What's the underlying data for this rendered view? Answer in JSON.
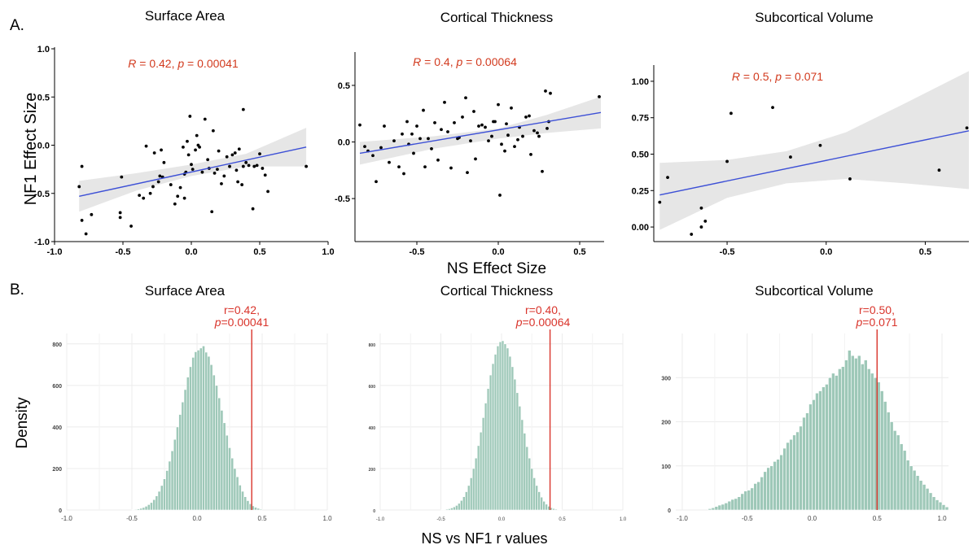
{
  "figure": {
    "panel_a_label": "A.",
    "panel_b_label": "B.",
    "a_ylabel": "NF1 Effect Size",
    "a_xlabel": "NS Effect Size",
    "b_ylabel": "Density",
    "b_xlabel": "NS vs NF1 r values"
  },
  "colors": {
    "point": "#000000",
    "fit_line": "#3d50d6",
    "ribbon": "#e6e6e6",
    "stats_text": "#d23a1e",
    "bar_fill": "#9ec8b8",
    "bar_edge": "#ffffff",
    "ref_line": "#d9342b",
    "grid": "#ececec"
  },
  "chart_data": [
    {
      "type": "scatter",
      "title": "Surface Area",
      "stats": {
        "r_label": "R",
        "r": "0.42",
        "p_label": "p",
        "p": "0.00041"
      },
      "xlim": [
        -1.0,
        1.0
      ],
      "ylim": [
        -1.0,
        1.0
      ],
      "xticks": [
        -1.0,
        -0.5,
        0.0,
        0.5,
        1.0
      ],
      "xtick_labels": [
        "-1.0",
        "-0.5",
        "0.0",
        "0.5",
        "1.0"
      ],
      "yticks": [
        -1.0,
        -0.5,
        0.0,
        0.5,
        1.0
      ],
      "ytick_labels": [
        "-1.0",
        "-0.5",
        "0.0",
        "0.5",
        "1.0"
      ],
      "fit": {
        "x": [
          -0.82,
          0.84
        ],
        "y": [
          -0.53,
          -0.02
        ]
      },
      "ribbon": {
        "x": [
          -0.82,
          -0.4,
          0.0,
          0.4,
          0.84
        ],
        "lower": [
          -0.69,
          -0.47,
          -0.32,
          -0.22,
          -0.22
        ],
        "upper": [
          -0.37,
          -0.29,
          -0.2,
          -0.09,
          0.18
        ]
      },
      "points": [
        [
          -0.82,
          -0.43
        ],
        [
          -0.8,
          -0.78
        ],
        [
          -0.8,
          -0.22
        ],
        [
          -0.77,
          -0.92
        ],
        [
          -0.73,
          -0.72
        ],
        [
          -0.52,
          -0.75
        ],
        [
          -0.52,
          -0.7
        ],
        [
          -0.51,
          -0.33
        ],
        [
          -0.44,
          -0.84
        ],
        [
          -0.38,
          -0.52
        ],
        [
          -0.35,
          -0.55
        ],
        [
          -0.33,
          -0.01
        ],
        [
          -0.3,
          -0.5
        ],
        [
          -0.28,
          -0.43
        ],
        [
          -0.27,
          -0.08
        ],
        [
          -0.24,
          -0.38
        ],
        [
          -0.23,
          -0.32
        ],
        [
          -0.22,
          -0.05
        ],
        [
          -0.21,
          -0.33
        ],
        [
          -0.2,
          -0.18
        ],
        [
          -0.15,
          -0.41
        ],
        [
          -0.12,
          -0.61
        ],
        [
          -0.1,
          -0.53
        ],
        [
          -0.08,
          -0.44
        ],
        [
          -0.06,
          -0.02
        ],
        [
          -0.05,
          -0.55
        ],
        [
          -0.05,
          -0.3
        ],
        [
          -0.04,
          -0.28
        ],
        [
          -0.03,
          0.04
        ],
        [
          -0.02,
          -0.1
        ],
        [
          -0.01,
          0.3
        ],
        [
          0.0,
          -0.2
        ],
        [
          0.01,
          -0.25
        ],
        [
          0.03,
          -0.05
        ],
        [
          0.04,
          0.1
        ],
        [
          0.05,
          0.0
        ],
        [
          0.06,
          -0.02
        ],
        [
          0.08,
          -0.28
        ],
        [
          0.1,
          0.27
        ],
        [
          0.12,
          -0.15
        ],
        [
          0.13,
          -0.24
        ],
        [
          0.15,
          -0.69
        ],
        [
          0.16,
          0.15
        ],
        [
          0.17,
          -0.29
        ],
        [
          0.19,
          -0.25
        ],
        [
          0.2,
          -0.06
        ],
        [
          0.22,
          -0.4
        ],
        [
          0.24,
          -0.32
        ],
        [
          0.26,
          -0.12
        ],
        [
          0.28,
          -0.22
        ],
        [
          0.3,
          -0.1
        ],
        [
          0.32,
          -0.08
        ],
        [
          0.33,
          -0.26
        ],
        [
          0.34,
          -0.38
        ],
        [
          0.35,
          -0.04
        ],
        [
          0.37,
          -0.41
        ],
        [
          0.38,
          -0.22
        ],
        [
          0.4,
          -0.18
        ],
        [
          0.42,
          -0.21
        ],
        [
          0.45,
          -0.66
        ],
        [
          0.46,
          -0.22
        ],
        [
          0.48,
          -0.21
        ],
        [
          0.5,
          -0.09
        ],
        [
          0.52,
          -0.24
        ],
        [
          0.54,
          -0.31
        ],
        [
          0.56,
          -0.48
        ],
        [
          0.84,
          -0.22
        ],
        [
          0.38,
          0.37
        ]
      ]
    },
    {
      "type": "scatter",
      "title": "Cortical Thickness",
      "stats": {
        "r_label": "R",
        "r": "0.4",
        "p_label": "p",
        "p": "0.00064"
      },
      "xlim": [
        -0.88,
        0.65
      ],
      "ylim": [
        -0.88,
        0.78
      ],
      "xticks": [
        -0.5,
        0.0,
        0.5
      ],
      "xtick_labels": [
        "-0.5",
        "0.0",
        "0.5"
      ],
      "yticks": [
        -0.5,
        0.0,
        0.5
      ],
      "ytick_labels": [
        "-0.5",
        "0.0",
        "0.5"
      ],
      "fit": {
        "x": [
          -0.85,
          0.63
        ],
        "y": [
          -0.1,
          0.26
        ]
      },
      "ribbon": {
        "x": [
          -0.85,
          -0.4,
          0.0,
          0.3,
          0.63
        ],
        "lower": [
          -0.2,
          -0.06,
          0.03,
          0.08,
          0.12
        ],
        "upper": [
          0.0,
          0.05,
          0.12,
          0.24,
          0.4
        ]
      },
      "points": [
        [
          -0.85,
          0.15
        ],
        [
          -0.82,
          -0.04
        ],
        [
          -0.8,
          -0.08
        ],
        [
          -0.77,
          -0.12
        ],
        [
          -0.75,
          -0.35
        ],
        [
          -0.72,
          -0.05
        ],
        [
          -0.7,
          0.14
        ],
        [
          -0.67,
          -0.18
        ],
        [
          -0.64,
          0.01
        ],
        [
          -0.61,
          -0.22
        ],
        [
          -0.59,
          0.07
        ],
        [
          -0.58,
          -0.28
        ],
        [
          -0.56,
          0.18
        ],
        [
          -0.55,
          -0.02
        ],
        [
          -0.53,
          0.07
        ],
        [
          -0.52,
          -0.1
        ],
        [
          -0.5,
          0.14
        ],
        [
          -0.48,
          0.03
        ],
        [
          -0.46,
          0.28
        ],
        [
          -0.45,
          -0.22
        ],
        [
          -0.43,
          0.03
        ],
        [
          -0.41,
          -0.06
        ],
        [
          -0.39,
          0.17
        ],
        [
          -0.37,
          -0.16
        ],
        [
          -0.35,
          0.11
        ],
        [
          -0.33,
          0.35
        ],
        [
          -0.31,
          0.09
        ],
        [
          -0.29,
          -0.23
        ],
        [
          -0.27,
          0.17
        ],
        [
          -0.25,
          0.03
        ],
        [
          -0.24,
          0.04
        ],
        [
          -0.22,
          0.22
        ],
        [
          -0.2,
          0.39
        ],
        [
          -0.19,
          -0.27
        ],
        [
          -0.17,
          0.01
        ],
        [
          -0.15,
          0.27
        ],
        [
          -0.14,
          -0.15
        ],
        [
          -0.12,
          0.14
        ],
        [
          -0.1,
          0.15
        ],
        [
          -0.08,
          0.13
        ],
        [
          -0.06,
          0.01
        ],
        [
          -0.04,
          0.05
        ],
        [
          -0.03,
          0.18
        ],
        [
          -0.02,
          0.18
        ],
        [
          0.0,
          0.33
        ],
        [
          0.01,
          -0.47
        ],
        [
          0.02,
          -0.02
        ],
        [
          0.04,
          -0.08
        ],
        [
          0.05,
          0.16
        ],
        [
          0.06,
          0.06
        ],
        [
          0.08,
          0.3
        ],
        [
          0.1,
          -0.04
        ],
        [
          0.12,
          0.02
        ],
        [
          0.13,
          0.13
        ],
        [
          0.15,
          0.05
        ],
        [
          0.17,
          0.22
        ],
        [
          0.19,
          0.23
        ],
        [
          0.2,
          -0.11
        ],
        [
          0.22,
          0.1
        ],
        [
          0.24,
          0.08
        ],
        [
          0.25,
          0.05
        ],
        [
          0.27,
          -0.26
        ],
        [
          0.29,
          0.45
        ],
        [
          0.3,
          0.12
        ],
        [
          0.31,
          0.18
        ],
        [
          0.32,
          0.43
        ],
        [
          0.62,
          0.4
        ]
      ]
    },
    {
      "type": "scatter",
      "title": "Subcortical Volume",
      "stats": {
        "r_label": "R",
        "r": "0.5",
        "p_label": "p",
        "p": "0.071"
      },
      "xlim": [
        -0.87,
        0.72
      ],
      "ylim": [
        -0.1,
        1.1
      ],
      "xticks": [
        -0.5,
        0.0,
        0.5
      ],
      "xtick_labels": [
        "-0.5",
        "0.0",
        "0.5"
      ],
      "yticks": [
        0.0,
        0.25,
        0.5,
        0.75,
        1.0
      ],
      "ytick_labels": [
        "0.00",
        "0.25",
        "0.50",
        "0.75",
        "1.00"
      ],
      "fit": {
        "x": [
          -0.84,
          0.72
        ],
        "y": [
          0.22,
          0.66
        ]
      },
      "ribbon": {
        "x": [
          -0.84,
          -0.5,
          -0.2,
          0.1,
          0.4,
          0.72
        ],
        "lower": [
          -0.02,
          0.2,
          0.3,
          0.33,
          0.3,
          0.26
        ],
        "upper": [
          0.44,
          0.46,
          0.52,
          0.65,
          0.85,
          1.07
        ]
      },
      "points": [
        [
          -0.84,
          0.17
        ],
        [
          -0.8,
          0.34
        ],
        [
          -0.68,
          -0.05
        ],
        [
          -0.63,
          0.0
        ],
        [
          -0.63,
          0.13
        ],
        [
          -0.61,
          0.04
        ],
        [
          -0.5,
          0.45
        ],
        [
          -0.48,
          0.78
        ],
        [
          -0.27,
          0.82
        ],
        [
          -0.18,
          0.48
        ],
        [
          -0.03,
          0.56
        ],
        [
          0.12,
          0.33
        ],
        [
          0.57,
          0.39
        ],
        [
          0.71,
          0.68
        ]
      ]
    },
    {
      "type": "bar",
      "title": "Surface Area",
      "annotation": {
        "r": "r=0.42,",
        "p_label": "p",
        "p": "=0.00041"
      },
      "observed_r": 0.42,
      "xlim": [
        -1.0,
        1.0
      ],
      "ylim": [
        0,
        850
      ],
      "xticks": [
        -1.0,
        -0.5,
        0.0,
        0.5,
        1.0
      ],
      "xtick_labels": [
        "-1.0",
        "-0.5",
        "0.0",
        "0.5",
        "1.0"
      ],
      "yticks": [
        0,
        200,
        400,
        600,
        800
      ],
      "ytick_labels": [
        "0",
        "200",
        "400",
        "600",
        "800"
      ],
      "bin_start": -0.5,
      "bin_width": 0.02,
      "values": [
        2,
        3,
        5,
        8,
        12,
        18,
        26,
        36,
        50,
        68,
        90,
        118,
        150,
        190,
        235,
        285,
        340,
        400,
        460,
        520,
        580,
        640,
        690,
        735,
        762,
        770,
        780,
        790,
        760,
        740,
        700,
        650,
        600,
        540,
        480,
        420,
        360,
        300,
        250,
        200,
        160,
        120,
        90,
        64,
        45,
        30,
        20,
        13,
        8,
        4
      ]
    },
    {
      "type": "bar",
      "title": "Cortical Thickness",
      "annotation": {
        "r": "r=0.40,",
        "p_label": "p",
        "p": "=0.00064"
      },
      "observed_r": 0.4,
      "xlim": [
        -1.0,
        1.0
      ],
      "ylim": [
        0,
        850
      ],
      "xticks": [
        -1.0,
        -0.5,
        0.0,
        0.5,
        1.0
      ],
      "xtick_labels": [
        "-1.0",
        "-0.5",
        "0.0",
        "0.5",
        "1.0"
      ],
      "yticks": [
        0,
        200,
        400,
        600,
        800
      ],
      "ytick_labels": [
        "0",
        "200",
        "400",
        "600",
        "800"
      ],
      "bin_start": -0.5,
      "bin_width": 0.02,
      "values": [
        1,
        2,
        4,
        6,
        10,
        15,
        22,
        32,
        46,
        64,
        88,
        118,
        155,
        200,
        250,
        310,
        375,
        445,
        515,
        585,
        650,
        705,
        750,
        790,
        810,
        815,
        800,
        780,
        740,
        690,
        630,
        565,
        500,
        435,
        370,
        305,
        250,
        200,
        155,
        118,
        88,
        62,
        42,
        28,
        18,
        11,
        7,
        4,
        2,
        1
      ]
    },
    {
      "type": "bar",
      "title": "Subcortical Volume",
      "annotation": {
        "r": "r=0.50,",
        "p_label": "p",
        "p": "=0.071"
      },
      "observed_r": 0.5,
      "xlim": [
        -1.05,
        1.05
      ],
      "ylim": [
        0,
        400
      ],
      "xticks": [
        -1.0,
        -0.5,
        0.0,
        0.5,
        1.0
      ],
      "xtick_labels": [
        "-1.0",
        "-0.5",
        "0.0",
        "0.5",
        "1.0"
      ],
      "yticks": [
        0,
        100,
        200,
        300
      ],
      "ytick_labels": [
        "0",
        "100",
        "200",
        "300"
      ],
      "bin_start": -0.8,
      "bin_width": 0.025,
      "values": [
        3,
        5,
        8,
        11,
        13,
        16,
        20,
        24,
        26,
        30,
        37,
        43,
        45,
        50,
        60,
        64,
        75,
        87,
        96,
        100,
        110,
        115,
        125,
        140,
        153,
        160,
        170,
        177,
        190,
        210,
        220,
        240,
        250,
        265,
        270,
        279,
        285,
        300,
        310,
        305,
        320,
        325,
        340,
        362,
        350,
        344,
        350,
        331,
        340,
        320,
        310,
        300,
        290,
        270,
        246,
        222,
        200,
        180,
        170,
        150,
        135,
        113,
        100,
        90,
        78,
        67,
        58,
        49,
        39,
        30,
        23,
        18,
        12,
        7
      ]
    }
  ]
}
